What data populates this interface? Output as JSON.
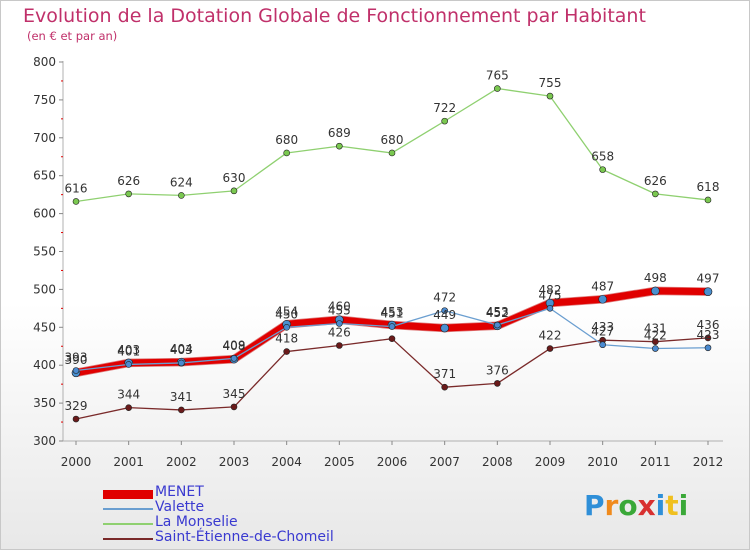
{
  "title": "Evolution de la Dotation Globale de Fonctionnement par Habitant",
  "subtitle": "(en € et par an)",
  "brand": {
    "text": "Proxiti",
    "colors": [
      "#2f8fd8",
      "#f08a1c",
      "#3aa838",
      "#d83030",
      "#2f8fd8",
      "#f0c020",
      "#3aa838"
    ]
  },
  "chart_data": {
    "type": "line",
    "title": "Evolution de la Dotation Globale de Fonctionnement par Habitant",
    "subtitle": "(en € et par an)",
    "xlabel": "",
    "ylabel": "",
    "x": [
      "2000",
      "2001",
      "2002",
      "2003",
      "2004",
      "2005",
      "2006",
      "2007",
      "2008",
      "2009",
      "2010",
      "2011",
      "2012"
    ],
    "ylim": [
      300,
      800
    ],
    "yticks": [
      300,
      350,
      400,
      450,
      500,
      550,
      600,
      650,
      700,
      750,
      800
    ],
    "grid": false,
    "legend_position": "bottom-left",
    "series": [
      {
        "name": "MENET",
        "color": "#e00000",
        "marker_color": "#4a90d0",
        "width": 7,
        "values": [
          390,
          403,
          404,
          408,
          454,
          460,
          453,
          449,
          452,
          482,
          487,
          498,
          497
        ]
      },
      {
        "name": "Valette",
        "color": "#6a9ed0",
        "marker_color": "#4a8ad0",
        "width": 1.3,
        "values": [
          393,
          401,
          403,
          409,
          450,
          455,
          451,
          472,
          453,
          475,
          427,
          422,
          423
        ]
      },
      {
        "name": "La Monselie",
        "color": "#8fd070",
        "marker_color": "#7ac850",
        "width": 1.3,
        "values": [
          616,
          626,
          624,
          630,
          680,
          689,
          680,
          722,
          765,
          755,
          658,
          626,
          618
        ]
      },
      {
        "name": "Saint-Étienne-de-Chomeil",
        "color": "#7a2a2a",
        "marker_color": "#6a1a1a",
        "width": 1.3,
        "values": [
          329,
          344,
          341,
          345,
          418,
          426,
          435,
          371,
          376,
          422,
          433,
          431,
          436
        ]
      }
    ],
    "data_labels": [
      {
        "series": "MENET",
        "values": [
          "390",
          "403",
          "404",
          "408",
          "454",
          "460",
          "453",
          "449",
          "452",
          "482",
          "487",
          "498",
          "497"
        ]
      },
      {
        "series": "Valette",
        "values": [
          "393",
          "401",
          "403",
          "409",
          "450",
          "455",
          "451",
          "472",
          "453",
          "475",
          "427",
          "422",
          "423"
        ]
      },
      {
        "series": "La Monselie",
        "values": [
          "616",
          "626",
          "624",
          "630",
          "680",
          "689",
          "680",
          "722",
          "765",
          "755",
          "658",
          "626",
          "618"
        ]
      },
      {
        "series": "Saint-Étienne-de-Chomeil",
        "values": [
          "329",
          "344",
          "341",
          "345",
          "418",
          "426",
          "",
          "371",
          "376",
          "422",
          "433",
          "431",
          "436"
        ]
      }
    ]
  }
}
